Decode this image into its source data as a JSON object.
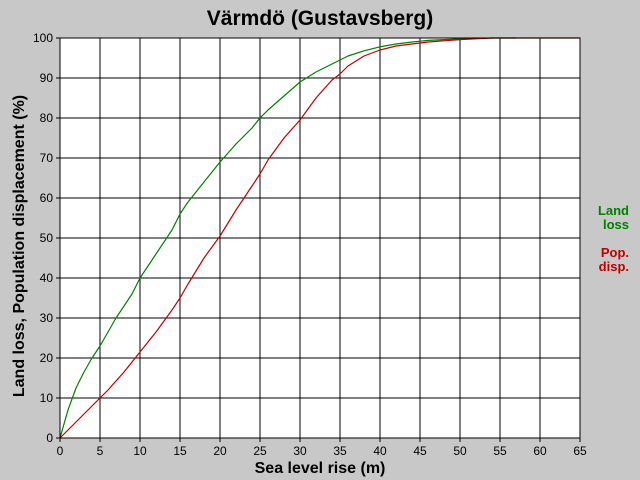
{
  "chart_data": {
    "type": "line",
    "title": "Värmdö (Gustavsberg)",
    "xlabel": "Sea level rise (m)",
    "ylabel": "Land loss, Population displacement (%)",
    "xlim": [
      0,
      65
    ],
    "ylim": [
      0,
      100
    ],
    "x_ticks": [
      0,
      5,
      10,
      15,
      20,
      25,
      30,
      35,
      40,
      45,
      50,
      55,
      60,
      65
    ],
    "y_ticks": [
      0,
      10,
      20,
      30,
      40,
      50,
      60,
      70,
      80,
      90,
      100
    ],
    "grid": true,
    "legend_position": "right",
    "series": [
      {
        "legend_lines": [
          "Land",
          "loss"
        ],
        "color": "#008000",
        "x": [
          0,
          1,
          2,
          3,
          4,
          5,
          6,
          7,
          8,
          9,
          10,
          12,
          14,
          15,
          16,
          18,
          20,
          22,
          24,
          25,
          26,
          28,
          30,
          32,
          34,
          35,
          36,
          38,
          40,
          42,
          44,
          45,
          46,
          48,
          50,
          52,
          54,
          56,
          57
        ],
        "y": [
          0,
          7,
          12.5,
          16.5,
          20,
          23,
          26.5,
          30,
          33,
          36,
          40,
          46,
          52,
          56,
          59,
          64,
          69,
          73.5,
          77.5,
          80,
          82,
          85.5,
          89,
          91.5,
          93.5,
          94.5,
          95.5,
          96.8,
          97.8,
          98.5,
          99,
          99.2,
          99.4,
          99.6,
          99.8,
          99.9,
          100,
          100,
          100
        ]
      },
      {
        "legend_lines": [
          "Pop.",
          "disp."
        ],
        "color": "#c00000",
        "x": [
          0,
          1,
          2,
          3,
          4,
          5,
          6,
          8,
          10,
          12,
          14,
          15,
          16,
          18,
          20,
          22,
          24,
          25,
          26,
          28,
          30,
          32,
          34,
          35,
          36,
          38,
          40,
          42,
          44,
          46,
          48,
          50,
          52,
          54,
          56,
          58,
          60,
          62,
          64,
          65
        ],
        "y": [
          0,
          2,
          4,
          6,
          8,
          10,
          12,
          16.5,
          21.5,
          26.5,
          32,
          35,
          38.5,
          45,
          50.5,
          57,
          63,
          66,
          69.5,
          75,
          79.5,
          85,
          89.5,
          91,
          93,
          95.5,
          97,
          98,
          98.5,
          99,
          99.3,
          99.6,
          99.8,
          100,
          100,
          100,
          100,
          100,
          100,
          100
        ]
      }
    ]
  }
}
